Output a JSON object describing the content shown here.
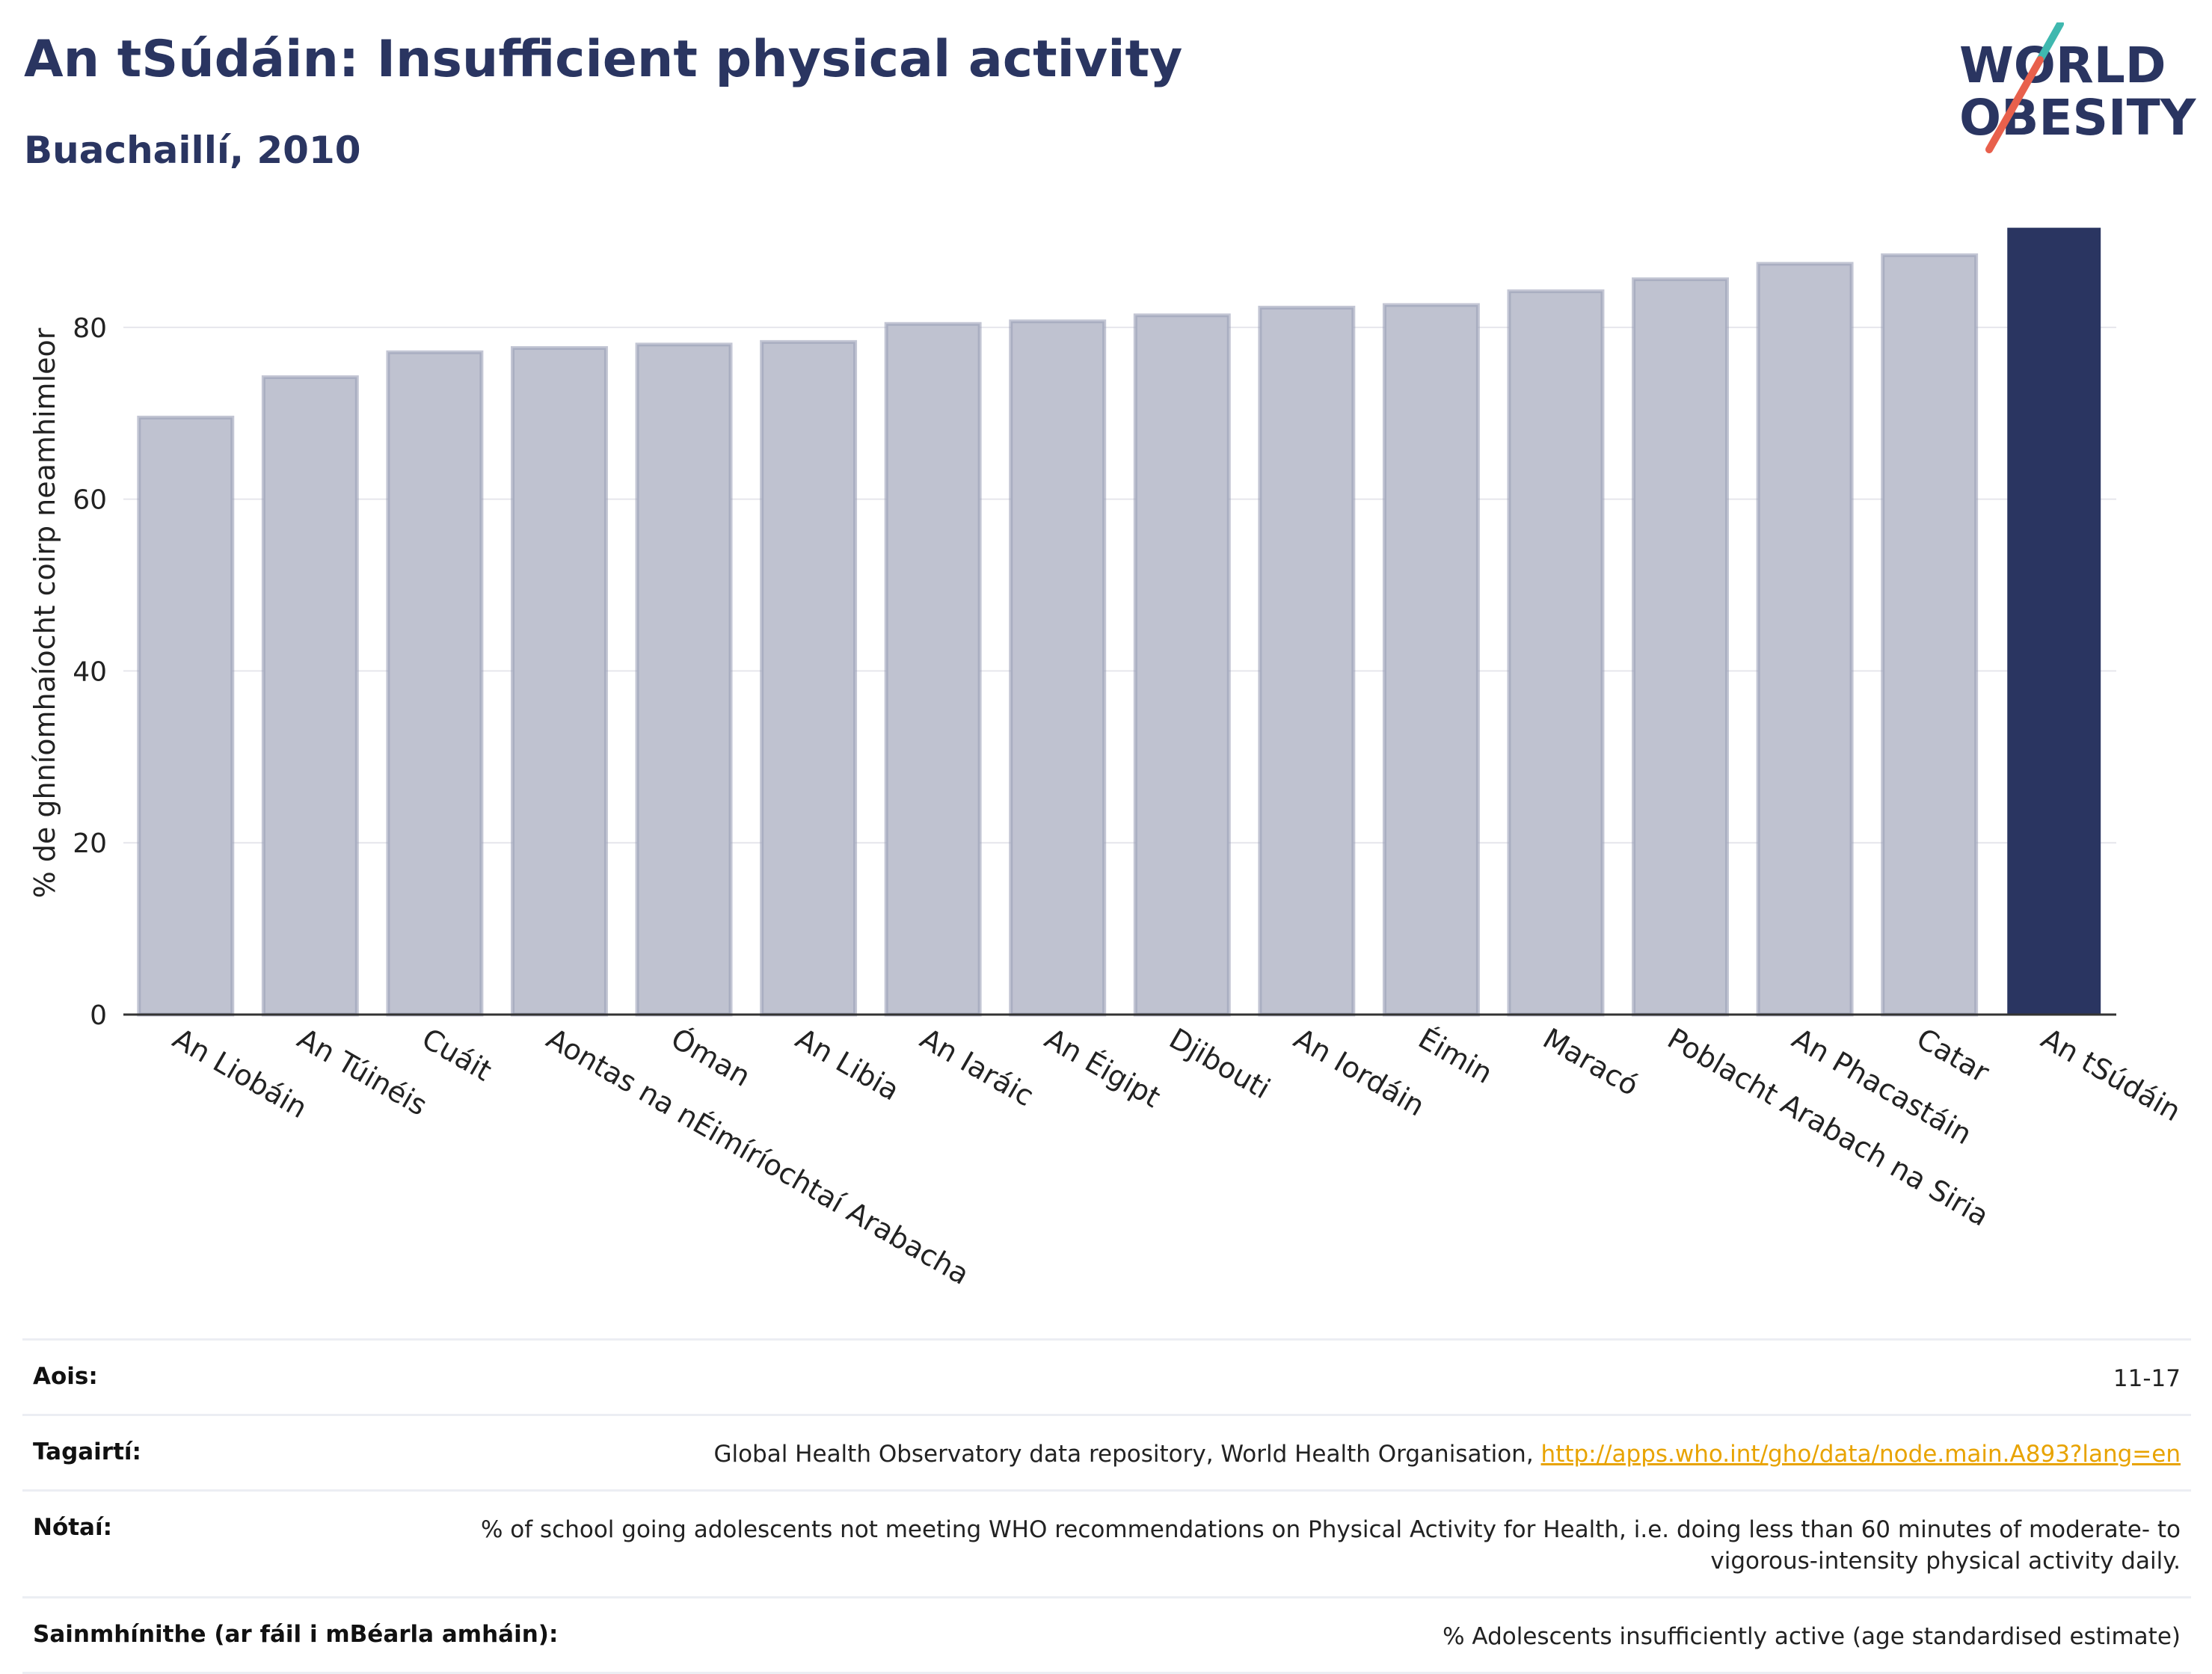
{
  "header": {
    "title": "An tSúdáin: Insufficient physical activity",
    "subtitle": "Buachaillí, 2010"
  },
  "logo": {
    "line1": "WORLD",
    "line2": "OBESITY",
    "text_color": "#2a3561",
    "accent_teal": "#3fb8af",
    "accent_red": "#e8604c"
  },
  "chart_data": {
    "type": "bar",
    "ylabel": "% de ghníomhaíocht coirp neamhimleor",
    "xlabel": "",
    "ylim": [
      0,
      92
    ],
    "yticks": [
      0,
      20,
      40,
      60,
      80
    ],
    "grid": true,
    "categories": [
      "An Liobáin",
      "An Túinéis",
      "Cuáit",
      "Aontas na nÉimíríochtaí Arabacha",
      "Óman",
      "An Libia",
      "An Iaráic",
      "An Éigipt",
      "Djibouti",
      "An Iordáin",
      "Éimin",
      "Maracó",
      "Poblacht Arabach na Siria",
      "An Phacastáin",
      "Catar",
      "An tSúdáin"
    ],
    "values": [
      69.5,
      74.2,
      77.1,
      77.6,
      78.0,
      78.3,
      80.4,
      80.7,
      81.4,
      82.3,
      82.6,
      84.2,
      85.6,
      87.4,
      88.4,
      91.6
    ],
    "highlight": "An tSúdáin",
    "colors": {
      "bar": "#bfc2d0",
      "bar_edge": "#9ba0b8",
      "highlight": "#2a3561",
      "grid": "#e6e6ec",
      "axis": "#333333"
    }
  },
  "info": {
    "rows": [
      {
        "label": "Aois:",
        "value": "11-17"
      },
      {
        "label": "Tagairtí:",
        "value": "Global Health Observatory data repository, World Health Organisation, ",
        "link": "http://apps.who.int/gho/data/node.main.A893?lang=en"
      },
      {
        "label": "Nótaí:",
        "value": "% of school going adolescents not meeting WHO recommendations on Physical Activity for Health, i.e. doing less than 60 minutes of moderate- to vigorous-intensity physical activity daily."
      },
      {
        "label": "Sainmhínithe (ar fáil i mBéarla amháin):",
        "value": "% Adolescents insufficiently active (age standardised estimate)"
      }
    ]
  }
}
